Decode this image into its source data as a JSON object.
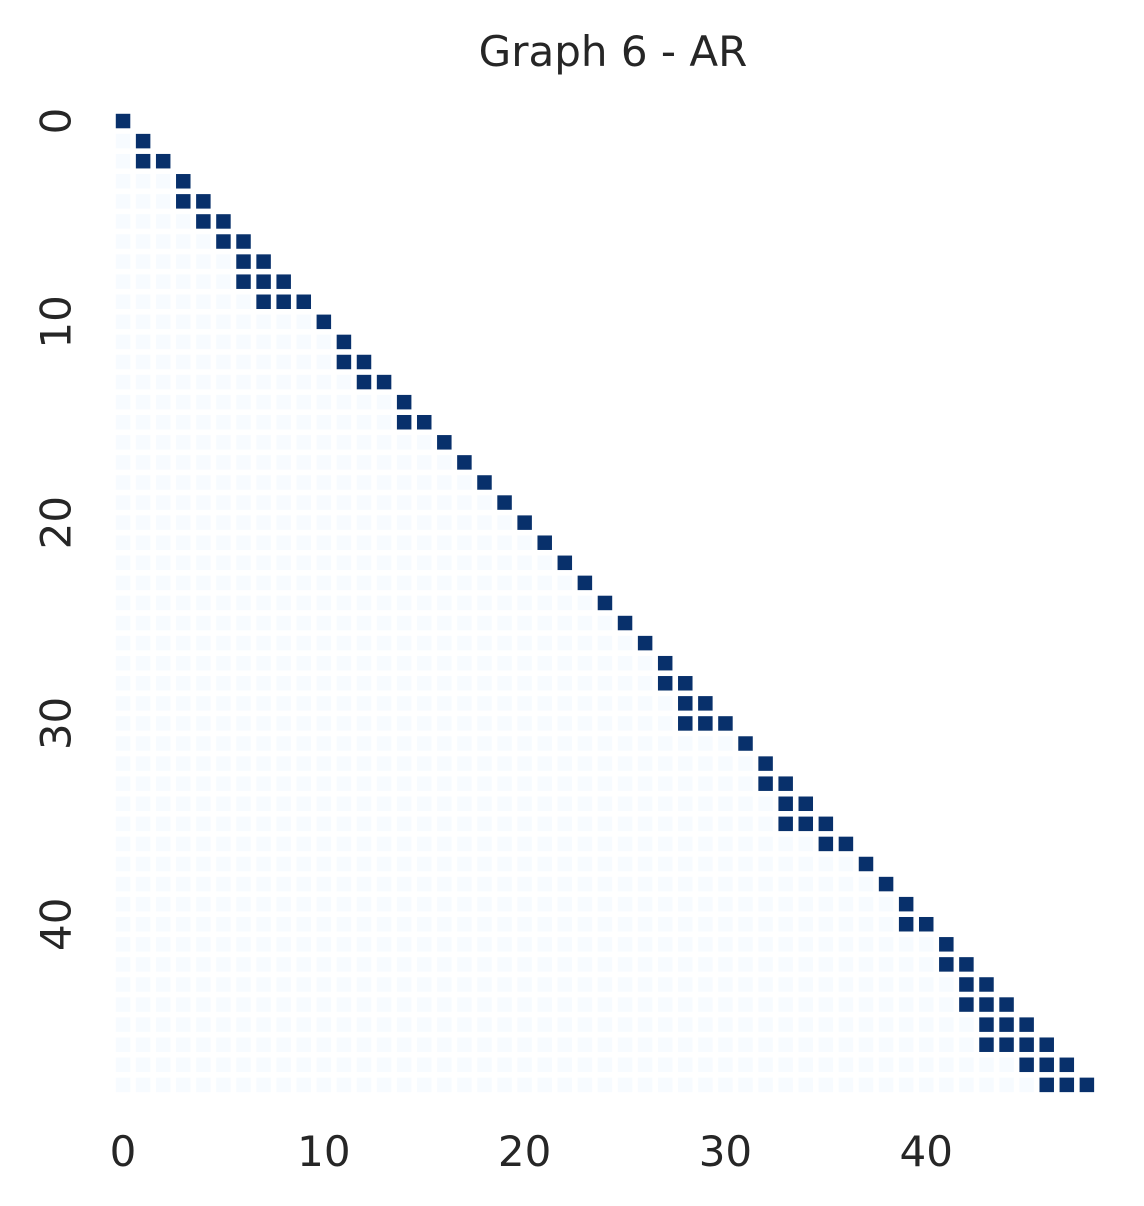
{
  "chart_data": {
    "type": "heatmap",
    "title": "Graph 6 - AR",
    "xlabel": "",
    "ylabel": "",
    "n": 49,
    "x_ticks": [
      0,
      10,
      20,
      30,
      40
    ],
    "y_ticks": [
      0,
      10,
      20,
      30,
      40
    ],
    "mask": "lower-triangle-including-diagonal",
    "colors": {
      "zero": "#f7fbff",
      "one": "#08306b",
      "background": "#ffffff",
      "text": "#262626"
    },
    "cells_value_1": [
      [
        0,
        0
      ],
      [
        1,
        1
      ],
      [
        2,
        1
      ],
      [
        2,
        2
      ],
      [
        3,
        3
      ],
      [
        4,
        3
      ],
      [
        4,
        4
      ],
      [
        5,
        4
      ],
      [
        5,
        5
      ],
      [
        6,
        5
      ],
      [
        6,
        6
      ],
      [
        7,
        6
      ],
      [
        7,
        7
      ],
      [
        8,
        6
      ],
      [
        8,
        7
      ],
      [
        8,
        8
      ],
      [
        9,
        7
      ],
      [
        9,
        8
      ],
      [
        9,
        9
      ],
      [
        10,
        10
      ],
      [
        11,
        11
      ],
      [
        12,
        11
      ],
      [
        12,
        12
      ],
      [
        13,
        12
      ],
      [
        13,
        13
      ],
      [
        14,
        14
      ],
      [
        15,
        14
      ],
      [
        15,
        15
      ],
      [
        16,
        16
      ],
      [
        17,
        17
      ],
      [
        18,
        18
      ],
      [
        19,
        19
      ],
      [
        20,
        20
      ],
      [
        21,
        21
      ],
      [
        22,
        22
      ],
      [
        23,
        23
      ],
      [
        24,
        24
      ],
      [
        25,
        25
      ],
      [
        26,
        26
      ],
      [
        27,
        27
      ],
      [
        28,
        27
      ],
      [
        28,
        28
      ],
      [
        29,
        28
      ],
      [
        29,
        29
      ],
      [
        30,
        28
      ],
      [
        30,
        29
      ],
      [
        30,
        30
      ],
      [
        31,
        31
      ],
      [
        32,
        32
      ],
      [
        33,
        32
      ],
      [
        33,
        33
      ],
      [
        34,
        33
      ],
      [
        34,
        34
      ],
      [
        35,
        33
      ],
      [
        35,
        34
      ],
      [
        35,
        35
      ],
      [
        36,
        35
      ],
      [
        36,
        36
      ],
      [
        37,
        37
      ],
      [
        38,
        38
      ],
      [
        39,
        39
      ],
      [
        40,
        39
      ],
      [
        40,
        40
      ],
      [
        41,
        41
      ],
      [
        42,
        41
      ],
      [
        42,
        42
      ],
      [
        43,
        42
      ],
      [
        43,
        43
      ],
      [
        44,
        42
      ],
      [
        44,
        43
      ],
      [
        44,
        44
      ],
      [
        45,
        43
      ],
      [
        45,
        44
      ],
      [
        45,
        45
      ],
      [
        46,
        43
      ],
      [
        46,
        44
      ],
      [
        46,
        45
      ],
      [
        46,
        46
      ],
      [
        47,
        45
      ],
      [
        47,
        46
      ],
      [
        47,
        47
      ],
      [
        48,
        46
      ],
      [
        48,
        47
      ],
      [
        48,
        48
      ]
    ]
  }
}
